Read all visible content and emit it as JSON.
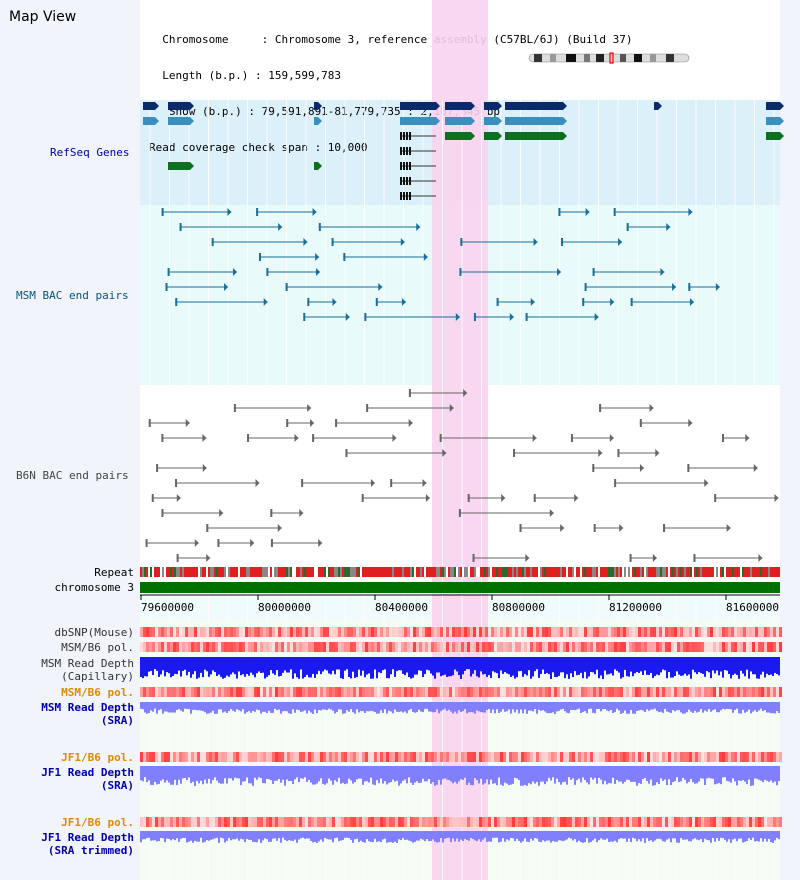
{
  "header": {
    "title": "Map View",
    "info_lines": [
      "  Chromosome     : Chromosome 3, reference assembly (C57BL/6J) (Build 37)",
      "  Length (b.p.) : 159,599,783",
      "   Show (b.p.) : 79,591,891-81,779,735 : 2,187,845 bp",
      "Read coverage check span : 10,000"
    ]
  },
  "tracks": {
    "refseq": "RefSeq Genes",
    "msm_bac": "MSM BAC end pairs",
    "b6n_bac": "B6N BAC end pairs",
    "repeat": "Repeat",
    "chromosome": "chromosome 3",
    "dbsnp": "dbSNP(Mouse)",
    "msm_b6_pol_1": "MSM/B6 pol.",
    "msm_read_depth_cap": "MSM Read Depth\n(Capillary)",
    "msm_b6_pol_2": "MSM/B6 pol.",
    "msm_read_depth_sra": "MSM Read Depth\n(SRA)",
    "jf1_b6_pol_1": "JF1/B6 pol.",
    "jf1_read_depth_sra": "JF1 Read Depth\n(SRA)",
    "jf1_b6_pol_2": "JF1/B6 pol.",
    "jf1_read_depth_trimmed": "JF1 Read Depth\n(SRA trimmed)"
  },
  "axis": {
    "ticks": [
      "79600000",
      "80000000",
      "80400000",
      "80800000",
      "81200000",
      "81600000"
    ]
  },
  "colors": {
    "refseq_bg": "#dcf0fa",
    "msm_bg": "#e8fafa",
    "highlight": "#f9d3ee",
    "refseq_label": "#0000aa",
    "msm_label": "#00557a",
    "b6n_label": "#444444",
    "pol_label": "#e08a00",
    "depth_label": "#0000aa",
    "chrom_bar": "#007000",
    "depth_dark": "#1a1af0",
    "depth_light": "#8080ff"
  },
  "ideogram": {
    "icon": "chromosome-ideogram-icon"
  }
}
